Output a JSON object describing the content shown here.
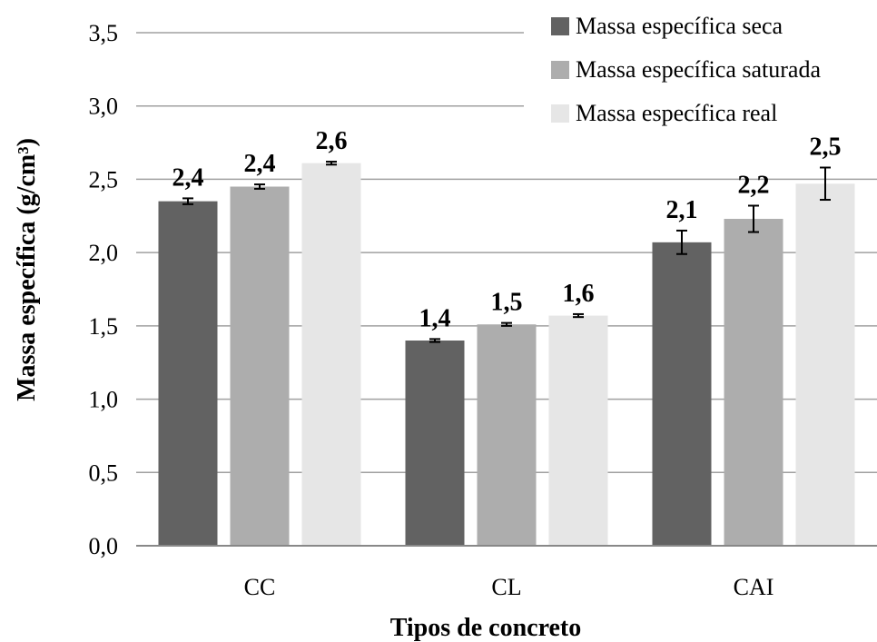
{
  "chart_data": {
    "type": "bar",
    "xlabel": "Tipos de concreto",
    "ylabel": "Massa específica (g/cm³)",
    "categories": [
      "CC",
      "CL",
      "CAI"
    ],
    "ylim": [
      0,
      3.5
    ],
    "yticks": [
      "0,0",
      "0,5",
      "1,0",
      "1,5",
      "2,0",
      "2,5",
      "3,0",
      "3,5"
    ],
    "grid": true,
    "legend_position": "top-right",
    "series": [
      {
        "name": "Massa específica seca",
        "color": "#626262",
        "values": [
          2.35,
          1.4,
          2.07
        ],
        "errors": [
          0.02,
          0.01,
          0.08
        ],
        "labels": [
          "2,4",
          "1,4",
          "2,1"
        ]
      },
      {
        "name": "Massa específica saturada",
        "color": "#adadad",
        "values": [
          2.45,
          1.51,
          2.23
        ],
        "errors": [
          0.015,
          0.01,
          0.09
        ],
        "labels": [
          "2,4",
          "1,5",
          "2,2"
        ]
      },
      {
        "name": "Massa específica real",
        "color": "#e6e6e6",
        "values": [
          2.61,
          1.57,
          2.47
        ],
        "errors": [
          0.01,
          0.01,
          0.11
        ],
        "labels": [
          "2,6",
          "1,6",
          "2,5"
        ]
      }
    ]
  }
}
